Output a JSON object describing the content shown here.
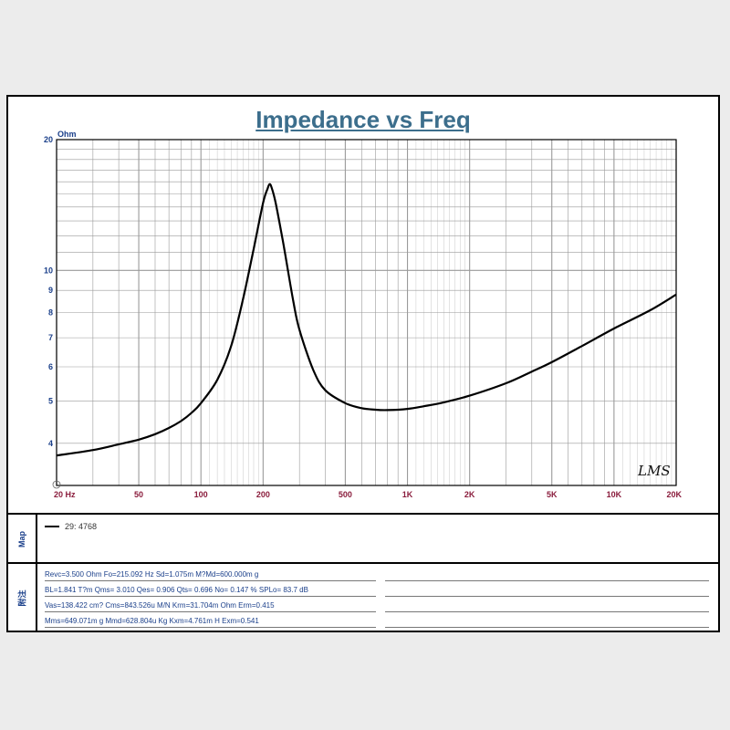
{
  "chart_data": {
    "type": "line",
    "title": "Impedance vs Freq",
    "ylabel": "Ohm",
    "xlabel": "",
    "x_scale": "log",
    "y_scale": "log",
    "xlim": [
      20,
      20000
    ],
    "ylim": [
      3.2,
      20
    ],
    "x_ticks": [
      {
        "value": 20,
        "label": "20  Hz"
      },
      {
        "value": 50,
        "label": "50"
      },
      {
        "value": 100,
        "label": "100"
      },
      {
        "value": 200,
        "label": "200"
      },
      {
        "value": 500,
        "label": "500"
      },
      {
        "value": 1000,
        "label": "1K"
      },
      {
        "value": 2000,
        "label": "2K"
      },
      {
        "value": 5000,
        "label": "5K"
      },
      {
        "value": 10000,
        "label": "10K"
      },
      {
        "value": 20000,
        "label": "20K"
      }
    ],
    "y_ticks": [
      {
        "value": 20,
        "label": "20"
      },
      {
        "value": 10,
        "label": "10"
      },
      {
        "value": 9,
        "label": "9"
      },
      {
        "value": 8,
        "label": "8"
      },
      {
        "value": 7,
        "label": "7"
      },
      {
        "value": 6,
        "label": "6"
      },
      {
        "value": 5,
        "label": "5"
      },
      {
        "value": 4,
        "label": "4"
      }
    ],
    "grid": true,
    "series": [
      {
        "name": "29: 4768",
        "color": "#000000",
        "x": [
          20,
          30,
          40,
          50,
          60,
          70,
          80,
          90,
          100,
          120,
          140,
          160,
          180,
          200,
          210,
          215,
          220,
          230,
          250,
          280,
          300,
          350,
          400,
          500,
          600,
          700,
          800,
          1000,
          1200,
          1500,
          2000,
          3000,
          4000,
          5000,
          7000,
          10000,
          15000,
          20000
        ],
        "values": [
          3.75,
          3.86,
          3.98,
          4.08,
          4.2,
          4.34,
          4.5,
          4.7,
          4.95,
          5.6,
          6.7,
          8.6,
          11.2,
          14.3,
          15.4,
          15.8,
          15.5,
          14.3,
          11.6,
          8.5,
          7.3,
          5.9,
          5.3,
          4.95,
          4.82,
          4.78,
          4.77,
          4.8,
          4.87,
          4.97,
          5.15,
          5.5,
          5.85,
          6.15,
          6.7,
          7.35,
          8.1,
          8.8
        ]
      }
    ]
  },
  "watermark": "LMS",
  "legend": {
    "section_label": "Map",
    "entries": [
      {
        "label": "29: 4768",
        "color": "#000000"
      }
    ]
  },
  "notes": {
    "section_label": "附注",
    "lines": [
      "Revc=3.500 Ohm  Fo=215.092 Hz  Sd=1.075m M?Md=600.000m g",
      "BL=1.841 T?m  Qms= 3.010  Qes= 0.906  Qts= 0.696  No= 0.147 %  SPLo= 83.7 dB",
      "Vas=138.422 cm?  Cms=843.526u M/N  Krm=31.704m Ohm  Erm=0.415",
      "Mms=649.071m g  Mmd=628.804u Kg  Kxm=4.761m H  Exm=0.541"
    ]
  },
  "colors": {
    "title": "#3c6e8c",
    "axis_labels": "#1a3f8a",
    "x_tick_labels": "#8a1c3c",
    "grid": "#9a9a9a",
    "curve": "#000000"
  }
}
